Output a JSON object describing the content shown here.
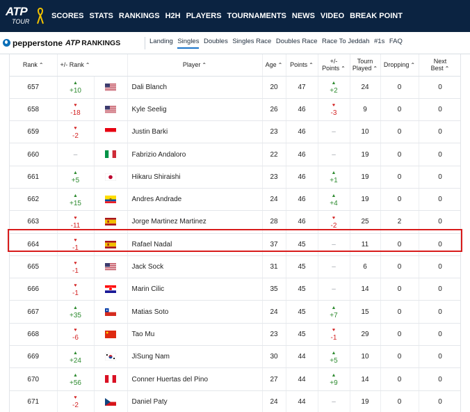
{
  "topnav": {
    "logo_text": "ATP",
    "logo_sub": "TOUR",
    "items": [
      "SCORES",
      "STATS",
      "RANKINGS",
      "H2H",
      "PLAYERS",
      "TOURNAMENTS",
      "NEWS",
      "VIDEO",
      "BREAK POINT"
    ]
  },
  "subnav": {
    "brand": "pepperstone",
    "brand_atp": "ATP",
    "brand_rankings": "RANKINGS",
    "items": [
      "Landing",
      "Singles",
      "Doubles",
      "Singles Race",
      "Doubles Race",
      "Race To Jeddah",
      "#1s",
      "FAQ"
    ],
    "active": "Singles"
  },
  "table": {
    "headers": {
      "rank": "Rank",
      "rank_move": "+/- Rank",
      "player": "Player",
      "age": "Age",
      "points": "Points",
      "points_move_1": "+/-",
      "points_move_2": "Points",
      "tourn_1": "Tourn",
      "tourn_2": "Played",
      "dropping": "Dropping",
      "next_1": "Next",
      "next_2": "Best"
    },
    "rows": [
      {
        "rank": "657",
        "move": "+10",
        "dir": "up",
        "flag": "usa",
        "player": "Dali Blanch",
        "age": "20",
        "points": "47",
        "pmove": "+2",
        "pdir": "up",
        "played": "24",
        "dropping": "0",
        "next": "0"
      },
      {
        "rank": "658",
        "move": "-18",
        "dir": "down",
        "flag": "usa",
        "player": "Kyle Seelig",
        "age": "26",
        "points": "46",
        "pmove": "-3",
        "pdir": "down",
        "played": "9",
        "dropping": "0",
        "next": "0"
      },
      {
        "rank": "659",
        "move": "-2",
        "dir": "down",
        "flag": "indonesia",
        "player": "Justin Barki",
        "age": "23",
        "points": "46",
        "pmove": "-",
        "pdir": "none",
        "played": "10",
        "dropping": "0",
        "next": "0"
      },
      {
        "rank": "660",
        "move": "-",
        "dir": "none",
        "flag": "italy",
        "player": "Fabrizio Andaloro",
        "age": "22",
        "points": "46",
        "pmove": "-",
        "pdir": "none",
        "played": "19",
        "dropping": "0",
        "next": "0"
      },
      {
        "rank": "661",
        "move": "+5",
        "dir": "up",
        "flag": "japan",
        "player": "Hikaru Shiraishi",
        "age": "23",
        "points": "46",
        "pmove": "+1",
        "pdir": "up",
        "played": "19",
        "dropping": "0",
        "next": "0"
      },
      {
        "rank": "662",
        "move": "+15",
        "dir": "up",
        "flag": "ecuador",
        "player": "Andres Andrade",
        "age": "24",
        "points": "46",
        "pmove": "+4",
        "pdir": "up",
        "played": "19",
        "dropping": "0",
        "next": "0"
      },
      {
        "rank": "663",
        "move": "-11",
        "dir": "down",
        "flag": "spain",
        "player": "Jorge Martinez Martinez",
        "age": "28",
        "points": "46",
        "pmove": "-2",
        "pdir": "down",
        "played": "25",
        "dropping": "2",
        "next": "0"
      },
      {
        "rank": "664",
        "move": "-1",
        "dir": "down",
        "flag": "spain",
        "player": "Rafael Nadal",
        "age": "37",
        "points": "45",
        "pmove": "-",
        "pdir": "none",
        "played": "11",
        "dropping": "0",
        "next": "0"
      },
      {
        "rank": "665",
        "move": "-1",
        "dir": "down",
        "flag": "usa",
        "player": "Jack Sock",
        "age": "31",
        "points": "45",
        "pmove": "-",
        "pdir": "none",
        "played": "6",
        "dropping": "0",
        "next": "0"
      },
      {
        "rank": "666",
        "move": "-1",
        "dir": "down",
        "flag": "croatia",
        "player": "Marin Cilic",
        "age": "35",
        "points": "45",
        "pmove": "-",
        "pdir": "none",
        "played": "14",
        "dropping": "0",
        "next": "0"
      },
      {
        "rank": "667",
        "move": "+35",
        "dir": "up",
        "flag": "chile",
        "player": "Matias Soto",
        "age": "24",
        "points": "45",
        "pmove": "+7",
        "pdir": "up",
        "played": "15",
        "dropping": "0",
        "next": "0"
      },
      {
        "rank": "668",
        "move": "-6",
        "dir": "down",
        "flag": "china",
        "player": "Tao Mu",
        "age": "23",
        "points": "45",
        "pmove": "-1",
        "pdir": "down",
        "played": "29",
        "dropping": "0",
        "next": "0"
      },
      {
        "rank": "669",
        "move": "+24",
        "dir": "up",
        "flag": "korea",
        "player": "JiSung Nam",
        "age": "30",
        "points": "44",
        "pmove": "+5",
        "pdir": "up",
        "played": "10",
        "dropping": "0",
        "next": "0"
      },
      {
        "rank": "670",
        "move": "+56",
        "dir": "up",
        "flag": "peru",
        "player": "Conner Huertas del Pino",
        "age": "27",
        "points": "44",
        "pmove": "+9",
        "pdir": "up",
        "played": "14",
        "dropping": "0",
        "next": "0"
      },
      {
        "rank": "671",
        "move": "-2",
        "dir": "down",
        "flag": "czech",
        "player": "Daniel Paty",
        "age": "24",
        "points": "44",
        "pmove": "-",
        "pdir": "none",
        "played": "19",
        "dropping": "0",
        "next": "0"
      }
    ],
    "highlighted_player": "Rafael Nadal"
  },
  "colors": {
    "nav_bg": "#0b2341",
    "up": "#2e8b30",
    "down": "#d32222",
    "highlight": "#d81b1b",
    "active_tab": "#1a73c9"
  }
}
